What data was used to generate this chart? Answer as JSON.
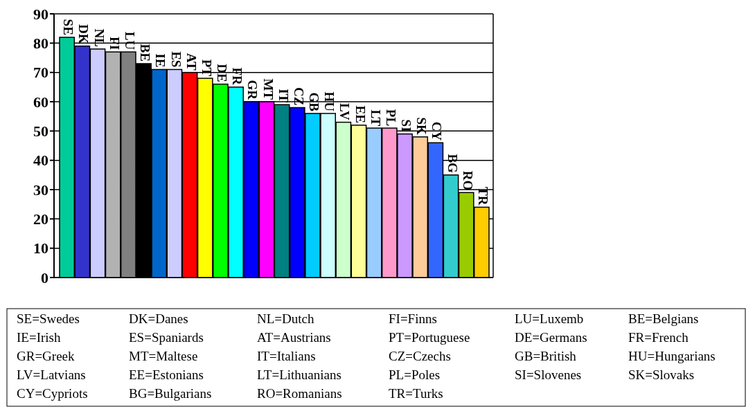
{
  "chart_data": {
    "type": "bar",
    "categories": [
      "SE",
      "DK",
      "NL",
      "FI",
      "LU",
      "BE",
      "IE",
      "ES",
      "AT",
      "PT",
      "DE",
      "FR",
      "GR",
      "MT",
      "IT",
      "CZ",
      "GB",
      "HU",
      "LV",
      "EE",
      "LT",
      "PL",
      "SI",
      "SK",
      "CY",
      "BG",
      "RO",
      "TR"
    ],
    "values": [
      82,
      79,
      78,
      77,
      77,
      73,
      71,
      71,
      70,
      68,
      66,
      65,
      60,
      60,
      59,
      58,
      56,
      56,
      53,
      52,
      51,
      51,
      49,
      48,
      46,
      35,
      29,
      24
    ],
    "colors": [
      "#00cc99",
      "#3333cc",
      "#ccccff",
      "#b2b2b2",
      "#808080",
      "#000000",
      "#0066cc",
      "#ccccff",
      "#ff0000",
      "#ffff00",
      "#00ff00",
      "#00ffff",
      "#0000ff",
      "#ff00ff",
      "#008080",
      "#0000ff",
      "#00ccff",
      "#ccffff",
      "#ccffcc",
      "#ffff99",
      "#99ccff",
      "#ff99cc",
      "#cc99ff",
      "#ffcc99",
      "#3366ff",
      "#33cccc",
      "#99cc00",
      "#ffcc00"
    ],
    "ylim": [
      0,
      90
    ],
    "yticks": [
      0,
      10,
      20,
      30,
      40,
      50,
      60,
      70,
      80,
      90
    ],
    "grid": "y",
    "annotations": [
      "SE=Swedes",
      "DK=Danes",
      "NL=Dutch",
      "FI=Finns",
      "LU=Luxemb",
      "BE=Belgians",
      "IE=Irish",
      "ES=Spaniards",
      "AT=Austrians",
      "PT=Portuguese",
      "DE=Germans",
      "FR=French",
      "GR=Greek",
      "MT=Maltese",
      "IT=Italians",
      "CZ=Czechs",
      "GB=British",
      "HU=Hungarians",
      "LV=Latvians",
      "EE=Estonians",
      "LT=Lithuanians",
      "PL=Poles",
      "SI=Slovenes",
      "SK=Slovaks",
      "CY=Cypriots",
      "BG=Bulgarians",
      "RO=Romanians",
      "TR=Turks"
    ]
  }
}
